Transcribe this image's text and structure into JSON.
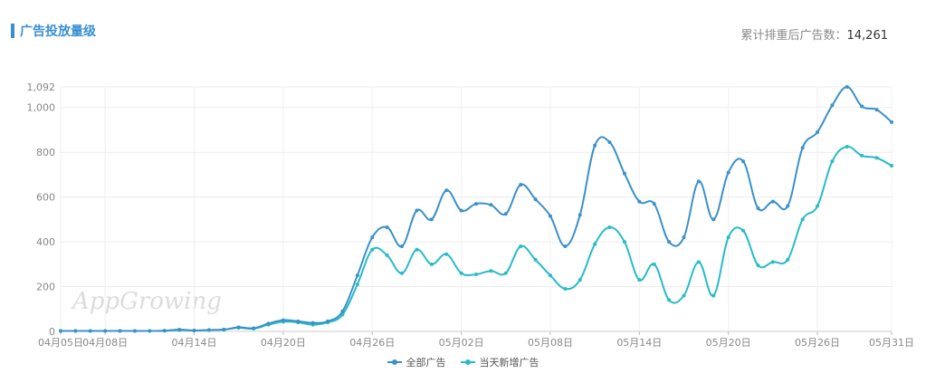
{
  "header": {
    "title": "广告投放量级",
    "total_label": "累计排重后广告数：",
    "total_value": "14,261"
  },
  "watermark": "AppGrowing",
  "colors": {
    "series1": "#3b91c9",
    "series2": "#27bcc8",
    "title": "#3a8fd1"
  },
  "chart_data": {
    "type": "line",
    "x_tick_labels": [
      "04月05日",
      "04月08日",
      "04月14日",
      "04月20日",
      "04月26日",
      "05月02日",
      "05月08日",
      "05月14日",
      "05月20日",
      "05月26日",
      "05月31日"
    ],
    "x_tick_index": [
      0,
      3,
      9,
      15,
      21,
      27,
      33,
      39,
      45,
      51,
      56
    ],
    "y_tick_labels": [
      "0",
      "200",
      "400",
      "600",
      "800",
      "1,000",
      "1,092"
    ],
    "y_tick_values": [
      0,
      200,
      400,
      600,
      800,
      1000,
      1092
    ],
    "ylim": [
      0,
      1092
    ],
    "grid": true,
    "legend_position": "bottom",
    "dates": [
      "04-05",
      "04-06",
      "04-07",
      "04-08",
      "04-09",
      "04-10",
      "04-11",
      "04-12",
      "04-13",
      "04-14",
      "04-15",
      "04-16",
      "04-17",
      "04-18",
      "04-19",
      "04-20",
      "04-21",
      "04-22",
      "04-23",
      "04-24",
      "04-25",
      "04-26",
      "04-27",
      "04-28",
      "04-29",
      "04-30",
      "05-01",
      "05-02",
      "05-03",
      "05-04",
      "05-05",
      "05-06",
      "05-07",
      "05-08",
      "05-09",
      "05-10",
      "05-11",
      "05-12",
      "05-13",
      "05-14",
      "05-15",
      "05-16",
      "05-17",
      "05-18",
      "05-19",
      "05-20",
      "05-21",
      "05-22",
      "05-23",
      "05-24",
      "05-25",
      "05-26",
      "05-27",
      "05-28",
      "05-29",
      "05-30",
      "05-31"
    ],
    "series": [
      {
        "name": "全部广告",
        "values": [
          2,
          2,
          2,
          2,
          2,
          2,
          2,
          3,
          8,
          4,
          6,
          8,
          18,
          14,
          35,
          50,
          45,
          38,
          45,
          90,
          250,
          420,
          465,
          380,
          540,
          500,
          630,
          540,
          570,
          565,
          525,
          655,
          590,
          515,
          380,
          520,
          830,
          845,
          705,
          580,
          570,
          400,
          420,
          670,
          500,
          710,
          760,
          550,
          580,
          560,
          820,
          890,
          1010,
          1092,
          1005,
          990,
          935
        ]
      },
      {
        "name": "当天新增广告",
        "values": [
          2,
          2,
          2,
          2,
          2,
          2,
          2,
          3,
          6,
          4,
          6,
          8,
          16,
          12,
          30,
          43,
          40,
          30,
          40,
          75,
          210,
          365,
          340,
          260,
          365,
          300,
          345,
          260,
          255,
          270,
          260,
          380,
          320,
          250,
          190,
          230,
          390,
          465,
          400,
          230,
          300,
          140,
          160,
          310,
          160,
          420,
          450,
          295,
          310,
          320,
          500,
          560,
          760,
          825,
          785,
          775,
          740
        ]
      }
    ]
  },
  "legend": {
    "items": [
      "全部广告",
      "当天新增广告"
    ]
  }
}
